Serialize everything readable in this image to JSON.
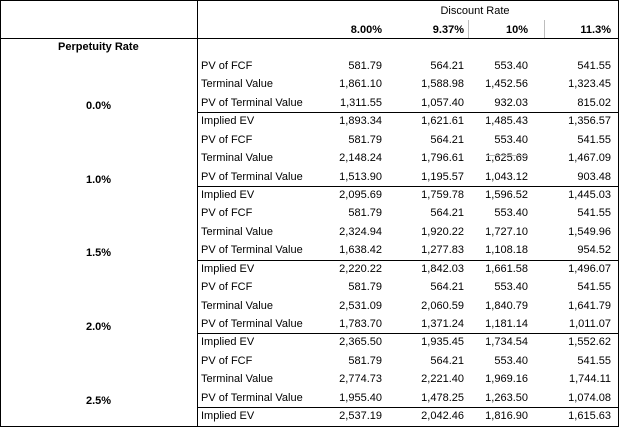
{
  "header": {
    "discount_label": "Discount Rate",
    "perpetuity_label": "Perpetuity Rate",
    "discount_rates": [
      "8.00%",
      "9.37%",
      "10%",
      "11.3%"
    ]
  },
  "blocks": [
    {
      "perpetuity_rate": "0.0%",
      "rows": [
        {
          "label": "PV of FCF",
          "values": [
            "581.79",
            "564.21",
            "553.40",
            "541.55"
          ]
        },
        {
          "label": "Terminal Value",
          "values": [
            "1,861.10",
            "1,588.98",
            "1,452.56",
            "1,323.45"
          ]
        },
        {
          "label": "PV of Terminal Value",
          "values": [
            "1,311.55",
            "1,057.40",
            "932.03",
            "815.02"
          ]
        },
        {
          "label": "Implied EV",
          "values": [
            "1,893.34",
            "1,621.61",
            "1,485.43",
            "1,356.57"
          ]
        }
      ]
    },
    {
      "perpetuity_rate": "1.0%",
      "rows": [
        {
          "label": "PV of FCF",
          "values": [
            "581.79",
            "564.21",
            "553.40",
            "541.55"
          ]
        },
        {
          "label": "Terminal Value",
          "values": [
            "2,148.24",
            "1,796.61",
            "1,625.69",
            "1,467.09"
          ]
        },
        {
          "label": "PV of Terminal Value",
          "values": [
            "1,513.90",
            "1,195.57",
            "1,043.12",
            "903.48"
          ]
        },
        {
          "label": "Implied EV",
          "values": [
            "2,095.69",
            "1,759.78",
            "1,596.52",
            "1,445.03"
          ]
        }
      ]
    },
    {
      "perpetuity_rate": "1.5%",
      "rows": [
        {
          "label": "PV of FCF",
          "values": [
            "581.79",
            "564.21",
            "553.40",
            "541.55"
          ]
        },
        {
          "label": "Terminal Value",
          "values": [
            "2,324.94",
            "1,920.22",
            "1,727.10",
            "1,549.96"
          ]
        },
        {
          "label": "PV of Terminal Value",
          "values": [
            "1,638.42",
            "1,277.83",
            "1,108.18",
            "954.52"
          ]
        },
        {
          "label": "Implied EV",
          "values": [
            "2,220.22",
            "1,842.03",
            "1,661.58",
            "1,496.07"
          ]
        }
      ]
    },
    {
      "perpetuity_rate": "2.0%",
      "rows": [
        {
          "label": "PV of FCF",
          "values": [
            "581.79",
            "564.21",
            "553.40",
            "541.55"
          ]
        },
        {
          "label": "Terminal Value",
          "values": [
            "2,531.09",
            "2,060.59",
            "1,840.79",
            "1,641.79"
          ]
        },
        {
          "label": "PV of Terminal Value",
          "values": [
            "1,783.70",
            "1,371.24",
            "1,181.14",
            "1,011.07"
          ]
        },
        {
          "label": "Implied EV",
          "values": [
            "2,365.50",
            "1,935.45",
            "1,734.54",
            "1,552.62"
          ]
        }
      ]
    },
    {
      "perpetuity_rate": "2.5%",
      "rows": [
        {
          "label": "PV of FCF",
          "values": [
            "581.79",
            "564.21",
            "553.40",
            "541.55"
          ]
        },
        {
          "label": "Terminal Value",
          "values": [
            "2,774.73",
            "2,221.40",
            "1,969.16",
            "1,744.11"
          ]
        },
        {
          "label": "PV of Terminal Value",
          "values": [
            "1,955.40",
            "1,478.25",
            "1,263.50",
            "1,074.08"
          ]
        },
        {
          "label": "Implied EV",
          "values": [
            "2,537.19",
            "2,042.46",
            "1,816.90",
            "1,615.63"
          ]
        }
      ]
    }
  ]
}
